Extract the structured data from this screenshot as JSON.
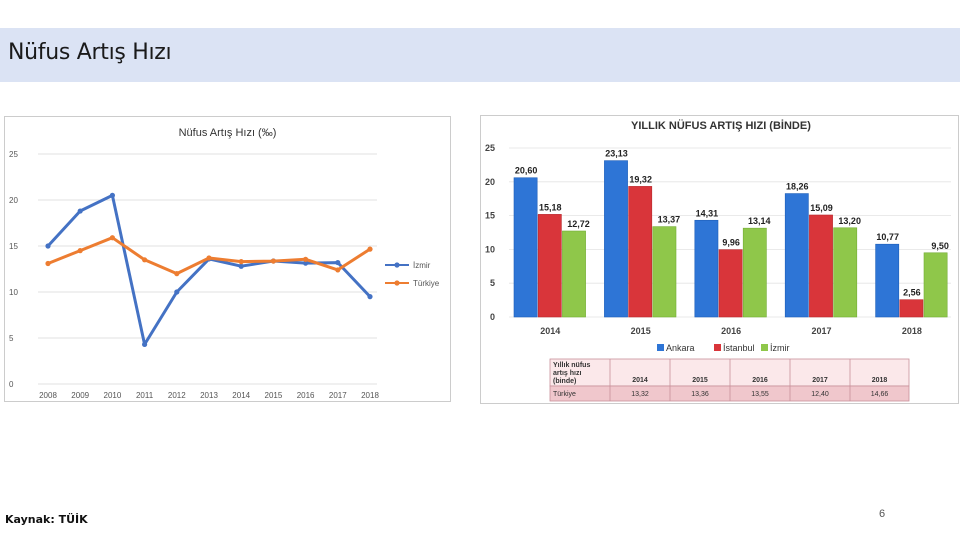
{
  "page": {
    "title": "Nüfus Artış Hızı",
    "source": "Kaynak: TÜİK",
    "page_number": "6"
  },
  "colors": {
    "izmir_line": "#4472c4",
    "turkiye_line": "#ed7d31",
    "ankara": "#2e75d6",
    "istanbul": "#d9353a",
    "izmir_bar": "#8fc74a",
    "table_border": "#c9909a",
    "table_header_bg": "#fbe8ea",
    "table_row_bg": "#f0c7cc"
  },
  "chart_data": [
    {
      "type": "line",
      "title": "Nüfus Artış Hızı (‰)",
      "x": [
        "2008",
        "2009",
        "2010",
        "2011",
        "2012",
        "2013",
        "2014",
        "2015",
        "2016",
        "2017",
        "2018"
      ],
      "ylim": [
        0,
        25
      ],
      "yticks": [
        "0",
        "5",
        "10",
        "15",
        "20",
        "25"
      ],
      "grid": true,
      "legend": "right",
      "series": [
        {
          "name": "İzmir",
          "values": [
            15.0,
            18.8,
            20.5,
            4.3,
            10.0,
            13.6,
            12.8,
            13.37,
            13.14,
            13.2,
            9.5
          ]
        },
        {
          "name": "Türkiye",
          "values": [
            13.1,
            14.5,
            15.9,
            13.5,
            12.0,
            13.7,
            13.3,
            13.36,
            13.55,
            12.4,
            14.66
          ]
        }
      ]
    },
    {
      "type": "bar",
      "title": "YILLIK NÜFUS ARTIŞ HIZI (BİNDE)",
      "categories": [
        "2014",
        "2015",
        "2016",
        "2017",
        "2018"
      ],
      "ylim": [
        0,
        25
      ],
      "yticks": [
        "0",
        "5",
        "10",
        "15",
        "20",
        "25"
      ],
      "grid": true,
      "legend": "bottom",
      "series": [
        {
          "name": "Ankara",
          "values": [
            20.6,
            23.13,
            14.31,
            18.26,
            10.77
          ],
          "labels": [
            "20,60",
            "23,13",
            "14,31",
            "18,26",
            "10,77"
          ]
        },
        {
          "name": "İstanbul",
          "values": [
            15.18,
            19.32,
            9.96,
            15.09,
            2.56
          ],
          "labels": [
            "15,18",
            "19,32",
            "9,96",
            "15,09",
            "2,56"
          ]
        },
        {
          "name": "İzmir",
          "values": [
            12.72,
            13.37,
            13.14,
            13.2,
            9.5
          ],
          "labels": [
            "12,72",
            "13,37",
            "13,14",
            "13,20",
            "9,50"
          ]
        }
      ]
    },
    {
      "type": "table",
      "header_lines": [
        "Yıllık nüfus",
        "artış hızı",
        "(binde)"
      ],
      "columns": [
        "2014",
        "2015",
        "2016",
        "2017",
        "2018"
      ],
      "rows": [
        {
          "label": "Türkiye",
          "values": [
            "13,32",
            "13,36",
            "13,55",
            "12,40",
            "14,66"
          ]
        }
      ]
    }
  ]
}
